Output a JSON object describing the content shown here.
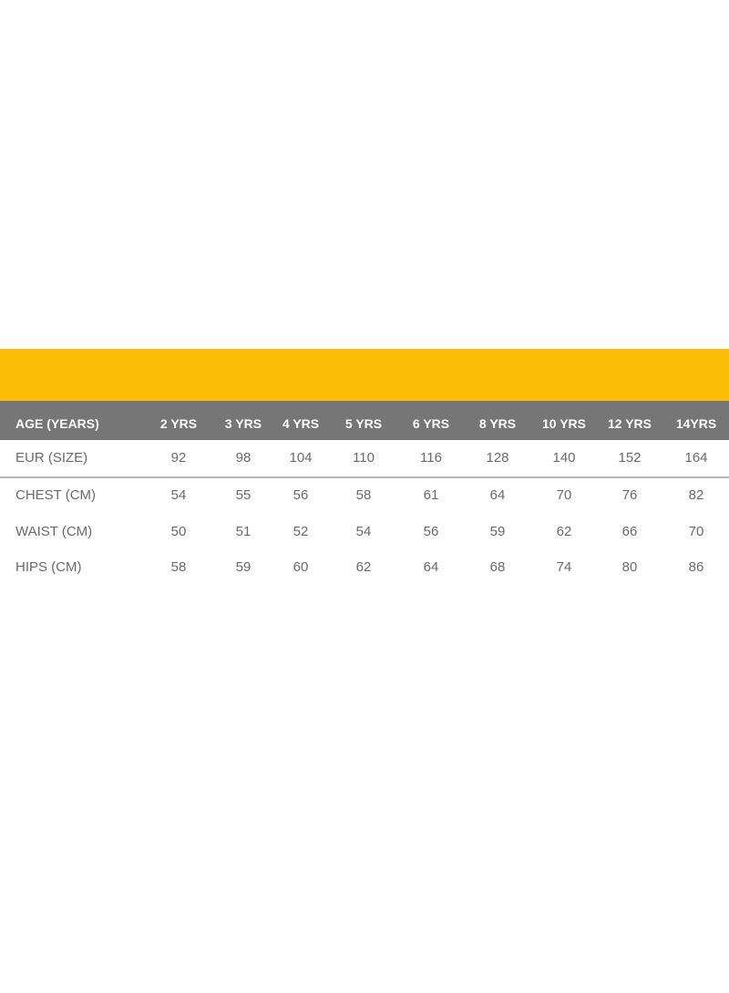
{
  "colors": {
    "band": "#FBBC05",
    "header": "#767676"
  },
  "table": {
    "header": {
      "label": "AGE (YEARS)",
      "cells": [
        "2 YRS",
        "3 YRS",
        "4 YRS",
        "5 YRS",
        "6 YRS",
        "8 YRS",
        "10 YRS",
        "12 YRS",
        "14YRS"
      ]
    },
    "rows": [
      {
        "label": "EUR (SIZE)",
        "cells": [
          "92",
          "98",
          "104",
          "110",
          "116",
          "128",
          "140",
          "152",
          "164"
        ]
      },
      {
        "label": "CHEST (CM)",
        "cells": [
          "54",
          "55",
          "56",
          "58",
          "61",
          "64",
          "70",
          "76",
          "82"
        ]
      },
      {
        "label": "WAIST (CM)",
        "cells": [
          "50",
          "51",
          "52",
          "54",
          "56",
          "59",
          "62",
          "66",
          "70"
        ]
      },
      {
        "label": "HIPS (CM)",
        "cells": [
          "58",
          "59",
          "60",
          "62",
          "64",
          "68",
          "74",
          "80",
          "86"
        ]
      }
    ]
  }
}
